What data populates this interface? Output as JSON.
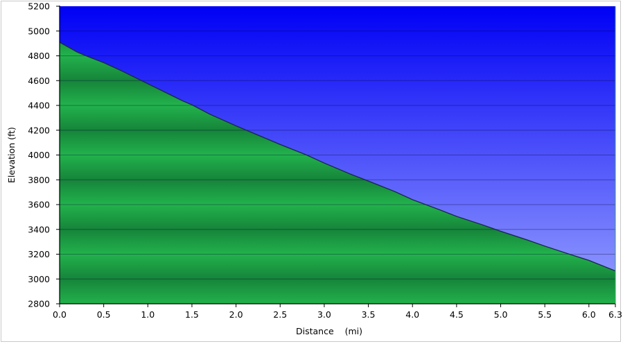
{
  "chart_data": {
    "type": "area",
    "xlabel": "Distance    (mi)",
    "ylabel": "Elevation (ft)",
    "xlim": [
      0,
      6.3
    ],
    "ylim": [
      2800,
      5200
    ],
    "x_ticks": [
      0,
      0.5,
      1.0,
      1.5,
      2.0,
      2.5,
      3.0,
      3.5,
      4.0,
      4.5,
      5.0,
      5.5,
      6.0,
      6.3
    ],
    "x_tick_labels": [
      "0.0",
      "0.5",
      "1.0",
      "1.5",
      "2.0",
      "2.5",
      "3.0",
      "3.5",
      "4.0",
      "4.5",
      "5.0",
      "5.5",
      "6.0",
      "6.3"
    ],
    "y_ticks": [
      2800,
      3000,
      3200,
      3400,
      3600,
      3800,
      4000,
      4200,
      4400,
      4600,
      4800,
      5000,
      5200
    ],
    "y_tick_labels": [
      "2800",
      "3000",
      "3200",
      "3400",
      "3600",
      "3800",
      "4000",
      "4200",
      "4400",
      "4600",
      "4800",
      "5000",
      "5200"
    ],
    "grid": true,
    "colors": {
      "sky_top": "#0000f5",
      "sky_bottom": "#9aa4ff",
      "ground_light": "#22b24c",
      "ground_dark": "#16843a",
      "profile_line": "#1a2a4a",
      "grid": "#000033"
    },
    "series": [
      {
        "x": [
          0.0,
          0.1,
          0.2,
          0.3,
          0.5,
          0.7,
          0.9,
          1.0,
          1.2,
          1.4,
          1.5,
          1.7,
          2.0,
          2.3,
          2.5,
          2.8,
          3.0,
          3.3,
          3.5,
          3.8,
          4.0,
          4.3,
          4.5,
          4.8,
          5.0,
          5.3,
          5.5,
          5.8,
          6.0,
          6.3
        ],
        "y": [
          4910,
          4870,
          4830,
          4800,
          4745,
          4680,
          4610,
          4575,
          4505,
          4435,
          4405,
          4330,
          4235,
          4145,
          4085,
          4000,
          3935,
          3845,
          3790,
          3705,
          3640,
          3560,
          3505,
          3435,
          3385,
          3315,
          3265,
          3195,
          3150,
          3065
        ]
      }
    ]
  }
}
